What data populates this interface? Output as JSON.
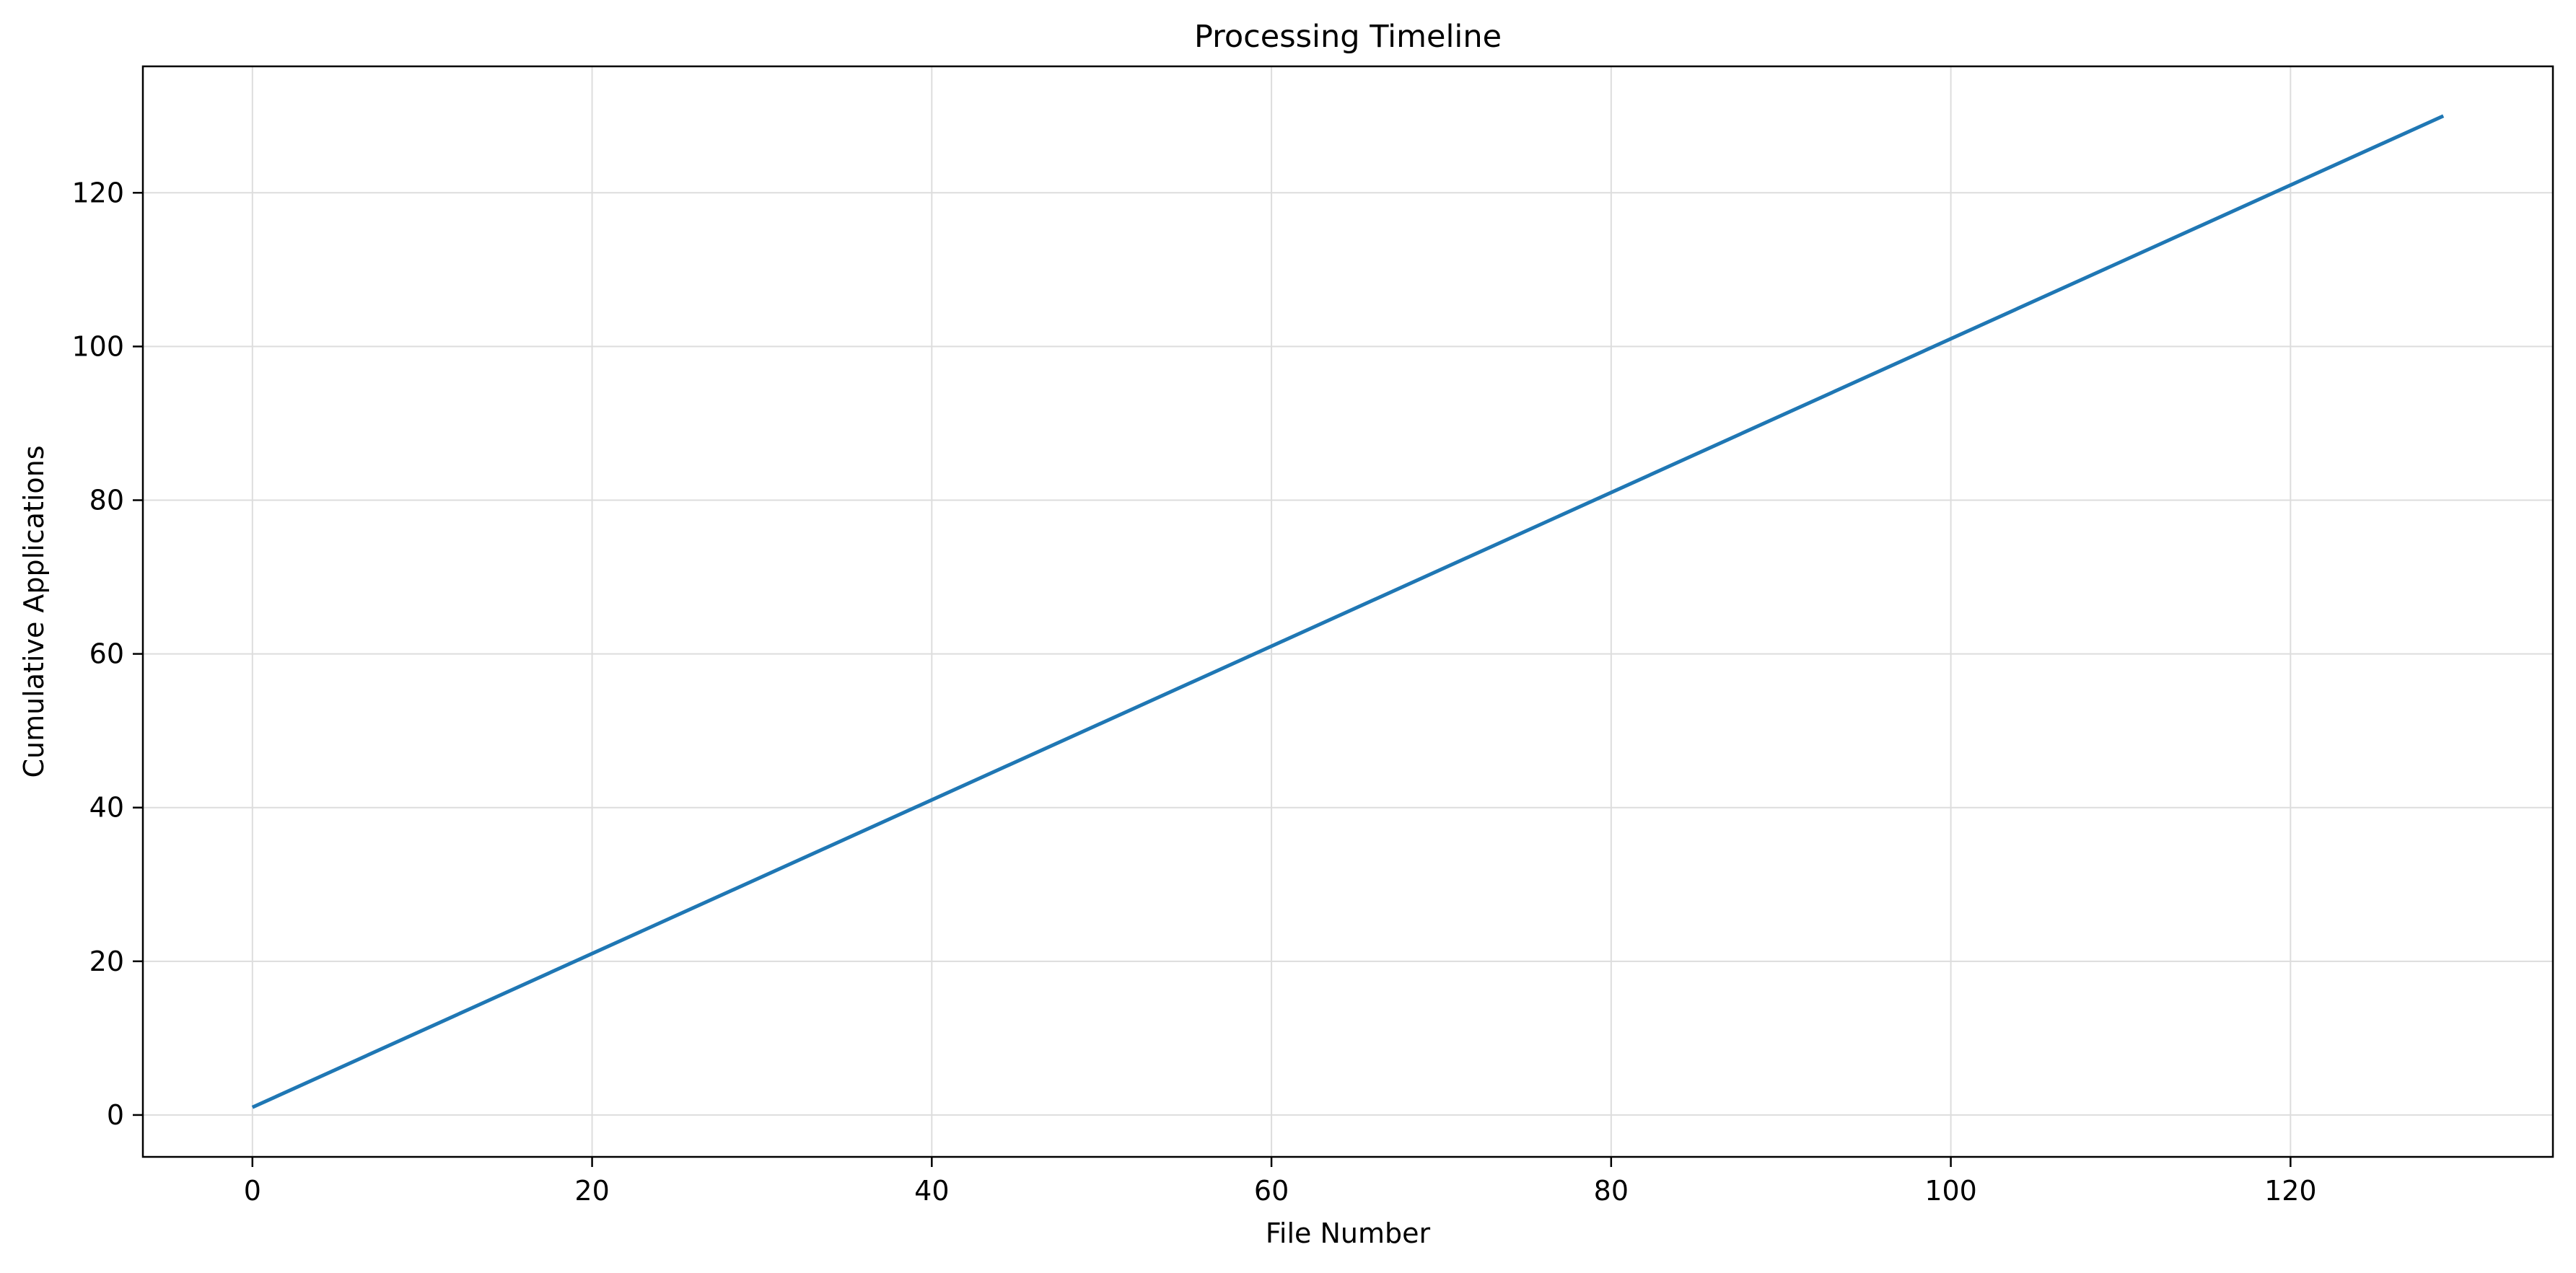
{
  "chart_data": {
    "type": "line",
    "title": "Processing Timeline",
    "xlabel": "File Number",
    "ylabel": "Cumulative Applications",
    "xlim": [
      -6.45,
      135.45
    ],
    "ylim": [
      -5.45,
      136.45
    ],
    "xticks": [
      0,
      20,
      40,
      60,
      80,
      100,
      120
    ],
    "yticks": [
      0,
      20,
      40,
      60,
      80,
      100,
      120
    ],
    "grid": true,
    "legend": "none",
    "series": [
      {
        "color": "#1f77b4",
        "x": [
          0,
          129
        ],
        "y": [
          1,
          130
        ]
      }
    ]
  }
}
